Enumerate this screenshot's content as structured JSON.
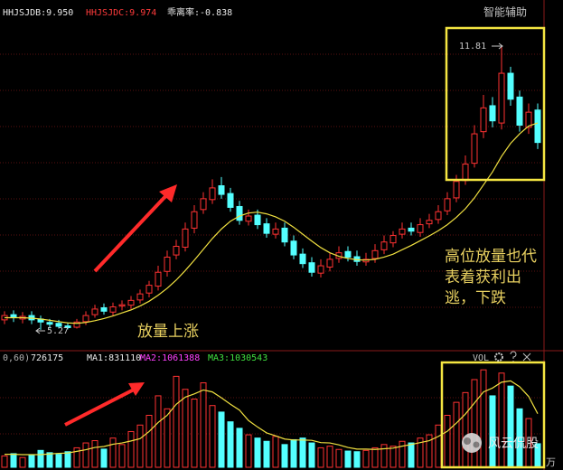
{
  "chart_data": {
    "type": "candlestick",
    "indicators": [
      {
        "label": "HHJSJDB:9.950",
        "color": "#e8e8e8"
      },
      {
        "label": "HHJSJDC:9.974",
        "color": "#ff3b3b"
      },
      {
        "label": "乖离率:-0.838",
        "color": "#e8e8e8"
      }
    ],
    "assist_label": "智能辅助",
    "high_label": "11.81",
    "low_label": "5.27",
    "annotations": [
      "放量上涨",
      "高位放量也代",
      "表着获利出",
      "逃，下跌"
    ],
    "watermark": "风云侃股",
    "up_color": "#ff3232",
    "down_color": "#54ffff",
    "ylim": [
      4.85,
      12.58
    ],
    "open": [
      5.5,
      5.62,
      5.52,
      5.6,
      5.52,
      5.44,
      5.42,
      5.36,
      5.33,
      5.46,
      5.62,
      5.78,
      5.68,
      5.82,
      5.84,
      5.96,
      6.12,
      6.28,
      6.62,
      7.0,
      7.18,
      7.62,
      8.05,
      8.28,
      8.6,
      8.42,
      8.12,
      7.78,
      7.92,
      7.72,
      7.48,
      7.62,
      7.32,
      7.02,
      6.82,
      6.58,
      6.72,
      6.92,
      7.08,
      6.96,
      6.84,
      6.92,
      7.12,
      7.28,
      7.48,
      7.62,
      7.52,
      7.72,
      7.82,
      8.02,
      8.32,
      8.72,
      9.12,
      9.85,
      10.45,
      10.05,
      11.2,
      10.65,
      9.95,
      10.35
    ],
    "high": [
      5.7,
      5.72,
      5.68,
      5.7,
      5.6,
      5.52,
      5.5,
      5.44,
      5.52,
      5.7,
      5.85,
      5.88,
      5.9,
      5.95,
      6.05,
      6.2,
      6.4,
      6.75,
      7.1,
      7.35,
      7.75,
      8.15,
      8.45,
      8.75,
      8.8,
      8.55,
      8.25,
      8.05,
      8.05,
      7.85,
      7.75,
      7.75,
      7.45,
      7.15,
      6.95,
      6.9,
      7.05,
      7.2,
      7.2,
      7.1,
      7.05,
      7.25,
      7.45,
      7.55,
      7.75,
      7.75,
      7.85,
      7.95,
      8.15,
      8.45,
      8.85,
      9.3,
      10.0,
      10.7,
      10.65,
      11.81,
      11.35,
      10.8,
      10.5,
      10.5
    ],
    "low": [
      5.4,
      5.45,
      5.42,
      5.4,
      5.27,
      5.3,
      5.3,
      5.28,
      5.3,
      5.38,
      5.55,
      5.62,
      5.6,
      5.72,
      5.75,
      5.88,
      6.02,
      6.18,
      6.5,
      6.9,
      7.08,
      7.5,
      7.95,
      8.18,
      8.3,
      8.0,
      7.7,
      7.68,
      7.6,
      7.4,
      7.38,
      7.2,
      6.9,
      6.7,
      6.5,
      6.48,
      6.62,
      6.82,
      6.85,
      6.75,
      6.75,
      6.82,
      7.02,
      7.18,
      7.38,
      7.45,
      7.42,
      7.62,
      7.72,
      7.92,
      8.22,
      8.62,
      9.02,
      9.7,
      9.95,
      9.9,
      10.45,
      9.85,
      9.8,
      9.45
    ],
    "close": [
      5.6,
      5.55,
      5.58,
      5.5,
      5.45,
      5.4,
      5.35,
      5.32,
      5.45,
      5.6,
      5.75,
      5.7,
      5.8,
      5.85,
      5.95,
      6.1,
      6.3,
      6.6,
      6.95,
      7.2,
      7.6,
      8.0,
      8.3,
      8.55,
      8.4,
      8.1,
      7.8,
      7.9,
      7.7,
      7.5,
      7.6,
      7.3,
      7.0,
      6.8,
      6.6,
      6.75,
      6.9,
      7.05,
      6.95,
      6.85,
      6.9,
      7.1,
      7.3,
      7.45,
      7.6,
      7.55,
      7.7,
      7.8,
      8.0,
      8.3,
      8.7,
      9.1,
      9.8,
      10.4,
      10.1,
      11.2,
      10.6,
      10.0,
      10.3,
      9.6
    ],
    "ma": {
      "color": "#f0e040",
      "values": [
        5.55,
        5.55,
        5.55,
        5.54,
        5.52,
        5.49,
        5.46,
        5.43,
        5.42,
        5.44,
        5.48,
        5.53,
        5.59,
        5.66,
        5.73,
        5.82,
        5.93,
        6.07,
        6.23,
        6.42,
        6.64,
        6.88,
        7.13,
        7.38,
        7.6,
        7.78,
        7.9,
        7.97,
        7.99,
        7.95,
        7.88,
        7.78,
        7.64,
        7.48,
        7.32,
        7.17,
        7.05,
        6.97,
        6.92,
        6.89,
        6.88,
        6.9,
        6.95,
        7.02,
        7.12,
        7.22,
        7.33,
        7.44,
        7.56,
        7.7,
        7.87,
        8.07,
        8.32,
        8.62,
        8.92,
        9.28,
        9.58,
        9.8,
        9.98,
        10.05
      ]
    },
    "volume": {
      "header": [
        {
          "label": "0,60)",
          "color": "#b0b0b0"
        },
        {
          "label": "726175",
          "color": "#e8e8e8"
        },
        {
          "label": "MA1:831110",
          "color": "#e8e8e8"
        },
        {
          "label": "MA2:1061388",
          "color": "#ff40ff"
        },
        {
          "label": "MA3:1030543",
          "color": "#40e040"
        }
      ],
      "name": "VOL",
      "unit": "万",
      "ylim": [
        0,
        3200000
      ],
      "values": [
        350000,
        420000,
        300000,
        380000,
        520000,
        450000,
        400000,
        480000,
        600000,
        750000,
        820000,
        560000,
        900000,
        700000,
        1100000,
        1300000,
        1600000,
        2200000,
        1800000,
        2800000,
        2400000,
        2100000,
        2600000,
        1900000,
        1700000,
        1400000,
        1200000,
        1000000,
        900000,
        800000,
        950000,
        700000,
        850000,
        900000,
        750000,
        600000,
        650000,
        550000,
        500000,
        480000,
        520000,
        600000,
        700000,
        650000,
        800000,
        750000,
        900000,
        1000000,
        1300000,
        1600000,
        2000000,
        2300000,
        2700000,
        3000000,
        2200000,
        2900000,
        2500000,
        1800000,
        1500000,
        726175
      ],
      "ma": {
        "color": "#f0e040",
        "values": [
          400000,
          400000,
          390000,
          390000,
          390000,
          410000,
          430000,
          440000,
          490000,
          540000,
          610000,
          640000,
          710000,
          750000,
          810000,
          880000,
          1100000,
          1380000,
          1600000,
          1940000,
          2160000,
          2260000,
          2380000,
          2320000,
          2140000,
          1940000,
          1760000,
          1440000,
          1240000,
          1060000,
          970000,
          870000,
          840000,
          840000,
          830000,
          760000,
          750000,
          690000,
          610000,
          560000,
          560000,
          550000,
          570000,
          590000,
          650000,
          700000,
          760000,
          820000,
          950000,
          1110000,
          1360000,
          1640000,
          1980000,
          2320000,
          2440000,
          2620000,
          2660000,
          2480000,
          2180000,
          1650000
        ]
      }
    }
  }
}
